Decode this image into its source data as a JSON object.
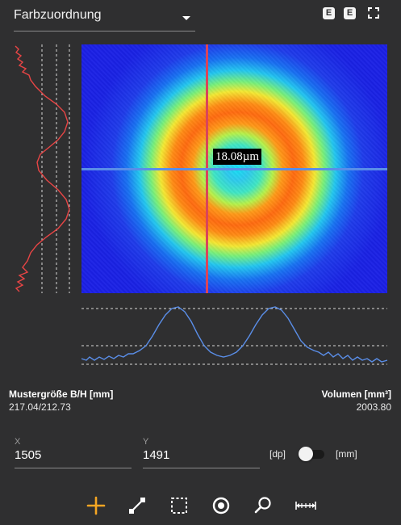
{
  "header": {
    "dropdown_label": "Farbzuordnung",
    "button_1_label": "E",
    "button_2_label": "E",
    "fullscreen_icon": "fullscreen-icon"
  },
  "beam_image": {
    "measurement_label": "18.08µm",
    "colormap": "jet",
    "colors": {
      "background": "#1c1ee6",
      "ring_peak": "#ff6a10",
      "center": "#14e0f4",
      "vertical_cursor": "#d9455a",
      "horizontal_cursor": "#5a8ee8"
    }
  },
  "profiles": {
    "vertical_color": "#e84545",
    "horizontal_color": "#5a8ee8"
  },
  "info": {
    "size_label": "Mustergröße B/H [mm]",
    "size_value": "217.04/212.73",
    "volume_label": "Volumen [mm³]",
    "volume_value": "2003.80"
  },
  "coords": {
    "x_label": "X",
    "x_value": "1505",
    "y_label": "Y",
    "y_value": "1491",
    "unit_left": "[dp]",
    "unit_right": "[mm]",
    "toggle_state": "dp"
  },
  "toolbar": {
    "accent_color": "#f5a623",
    "tools": [
      "crosshair-icon",
      "line-measure-icon",
      "rect-select-icon",
      "circle-target-icon",
      "zoom-icon",
      "distance-measure-icon"
    ],
    "active_tool": "crosshair-icon"
  }
}
